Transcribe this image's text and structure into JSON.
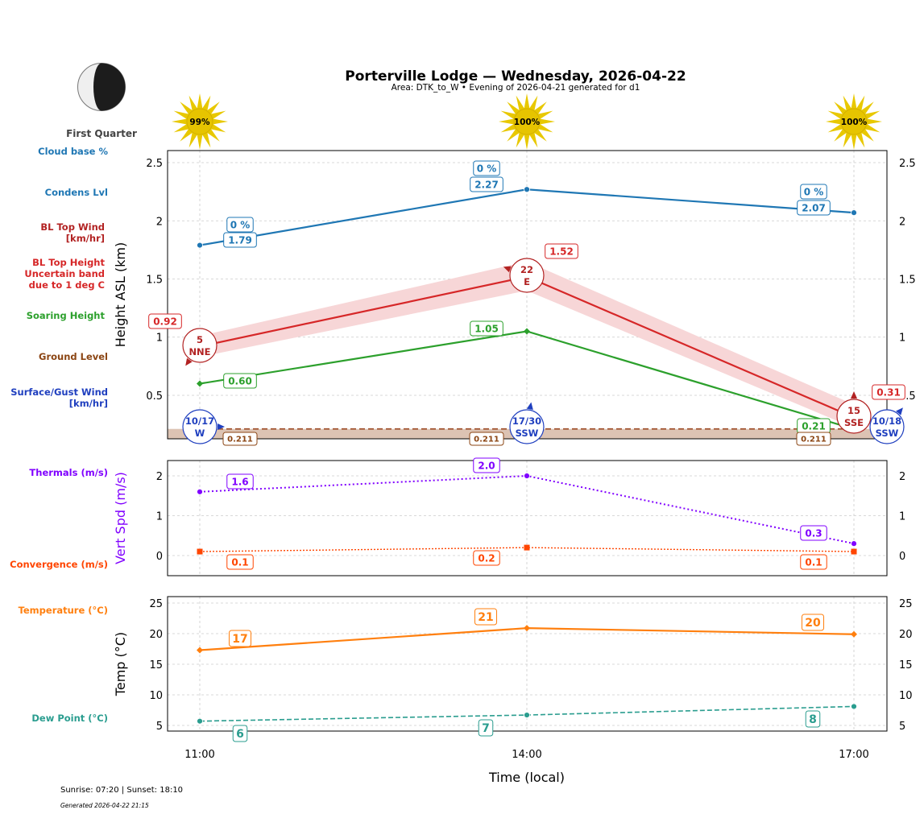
{
  "header": {
    "title": "Porterville Lodge — Wednesday, 2026-04-22",
    "subtitle": "Area: DTK_to_W • Evening of 2026-04-21 generated for d1"
  },
  "moon": {
    "phase": "First Quarter"
  },
  "sun_icons": [
    {
      "time": "11:00",
      "label": "99%"
    },
    {
      "time": "14:00",
      "label": "100%"
    },
    {
      "time": "17:00",
      "label": "100%"
    }
  ],
  "left_labels": {
    "cloud_base": "Cloud base %",
    "condens": "Condens Lvl",
    "bl_top_wind": [
      "BL Top Wind",
      "[km/hr]"
    ],
    "bl_top_height": [
      "BL Top Height",
      "Uncertain band",
      "due to 1 deg C"
    ],
    "soaring": "Soaring Height",
    "ground": "Ground Level",
    "surface_wind": [
      "Surface/Gust Wind",
      "[km/hr]"
    ],
    "thermals": "Thermals (m/s)",
    "convergence": "Convergence (m/s)",
    "temperature": "Temperature (°C)",
    "dew_point": "Dew Point (°C)"
  },
  "footer": {
    "sun": "Sunrise: 07:20 | Sunset: 18:10",
    "generated": "Generated 2026-04-22 21:15"
  },
  "colors": {
    "cloud": "#1f77b4",
    "bl_top": "#d62728",
    "bl_band": "#f7d6d7",
    "bl_wind": "#b22222",
    "soaring": "#2ca02c",
    "ground": "#8b4513",
    "ground_fill": "#dcc3b3",
    "surface_wind": "#1f3fbf",
    "thermal": "#8000ff",
    "convergence": "#ff4500",
    "temp": "#ff7f0e",
    "dew": "#2a9d8f",
    "sun": "#e8c800"
  },
  "chart_data": [
    {
      "type": "line",
      "ylabel": "Height ASL (km)",
      "categories": [
        "11:00",
        "14:00",
        "17:00"
      ],
      "ylim": [
        0.126,
        2.604
      ],
      "yticks": [
        0.5,
        1.0,
        1.5,
        2.0,
        2.5
      ],
      "grid": true,
      "series": [
        {
          "key": "condens",
          "values": [
            1.79,
            2.27,
            2.07
          ],
          "labels": [
            "1.79",
            "2.27",
            "2.07"
          ],
          "cloud_pct": [
            "0 %",
            "0 %",
            "0 %"
          ]
        },
        {
          "key": "bl_top",
          "values": [
            0.92,
            1.52,
            0.31
          ],
          "labels": [
            "0.92",
            "1.52",
            "0.31"
          ],
          "band_low": [
            0.83,
            1.4,
            0.22
          ],
          "band_high": [
            1.01,
            1.65,
            0.42
          ]
        },
        {
          "key": "soaring",
          "values": [
            0.6,
            1.05,
            0.21
          ],
          "labels": [
            "0.60",
            "1.05",
            "0.21"
          ]
        },
        {
          "key": "ground",
          "values": [
            0.211,
            0.211,
            0.211
          ],
          "labels": [
            "0.211",
            "0.211",
            "0.211"
          ]
        }
      ],
      "bl_top_wind": [
        {
          "speed": "5",
          "dir": "NNE"
        },
        {
          "speed": "22",
          "dir": "E"
        },
        {
          "speed": "15",
          "dir": "SSE"
        }
      ],
      "surface_wind": [
        {
          "speed": "10/17",
          "dir": "W"
        },
        {
          "speed": "17/30",
          "dir": "SSW"
        },
        {
          "speed": "10/18",
          "dir": "SSW"
        }
      ]
    },
    {
      "type": "line",
      "ylabel": "Vert Spd (m/s)",
      "categories": [
        "11:00",
        "14:00",
        "17:00"
      ],
      "ylim": [
        -0.505,
        2.384
      ],
      "yticks": [
        0,
        1,
        2
      ],
      "grid": true,
      "series": [
        {
          "key": "thermal",
          "values": [
            1.6,
            2.0,
            0.3
          ],
          "labels": [
            "1.6",
            "2.0",
            "0.3"
          ]
        },
        {
          "key": "convergence",
          "values": [
            0.1,
            0.2,
            0.1
          ],
          "labels": [
            "0.1",
            "0.2",
            "0.1"
          ]
        }
      ]
    },
    {
      "type": "line",
      "ylabel": "Temp (°C)",
      "xlabel": "Time (local)",
      "categories": [
        "11:00",
        "14:00",
        "17:00"
      ],
      "ylim": [
        4.08,
        26.05
      ],
      "yticks": [
        5,
        10,
        15,
        20,
        25
      ],
      "grid": true,
      "series": [
        {
          "key": "temp",
          "values": [
            17.3,
            20.9,
            19.9
          ],
          "labels": [
            "17",
            "21",
            "20"
          ]
        },
        {
          "key": "dew",
          "values": [
            5.7,
            6.7,
            8.1
          ],
          "labels": [
            "6",
            "7",
            "8"
          ]
        }
      ]
    }
  ]
}
